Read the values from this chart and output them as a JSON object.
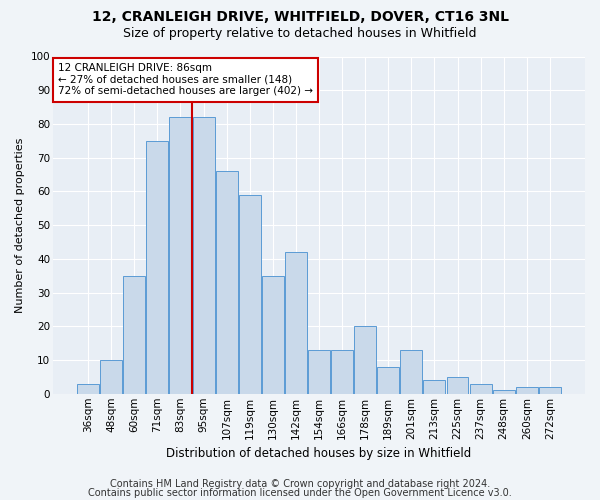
{
  "title1": "12, CRANLEIGH DRIVE, WHITFIELD, DOVER, CT16 3NL",
  "title2": "Size of property relative to detached houses in Whitfield",
  "xlabel": "Distribution of detached houses by size in Whitfield",
  "ylabel": "Number of detached properties",
  "bar_labels": [
    "36sqm",
    "48sqm",
    "60sqm",
    "71sqm",
    "83sqm",
    "95sqm",
    "107sqm",
    "119sqm",
    "130sqm",
    "142sqm",
    "154sqm",
    "166sqm",
    "178sqm",
    "189sqm",
    "201sqm",
    "213sqm",
    "225sqm",
    "237sqm",
    "248sqm",
    "260sqm",
    "272sqm"
  ],
  "bar_values": [
    3,
    10,
    35,
    75,
    82,
    82,
    66,
    59,
    35,
    42,
    13,
    13,
    20,
    8,
    13,
    4,
    5,
    3,
    1,
    2,
    2
  ],
  "bar_color": "#c9d9ea",
  "bar_edge_color": "#5b9bd5",
  "vline_color": "#cc0000",
  "annotation_text": "12 CRANLEIGH DRIVE: 86sqm\n← 27% of detached houses are smaller (148)\n72% of semi-detached houses are larger (402) →",
  "annotation_box_color": "#ffffff",
  "annotation_box_edge_color": "#cc0000",
  "footnote1": "Contains HM Land Registry data © Crown copyright and database right 2024.",
  "footnote2": "Contains public sector information licensed under the Open Government Licence v3.0.",
  "plot_bg_color": "#e8eef5",
  "fig_bg_color": "#f0f4f8",
  "ylim": [
    0,
    100
  ],
  "title1_fontsize": 10,
  "title2_fontsize": 9,
  "xlabel_fontsize": 8.5,
  "ylabel_fontsize": 8,
  "tick_fontsize": 7.5,
  "annotation_fontsize": 7.5,
  "footnote_fontsize": 7
}
